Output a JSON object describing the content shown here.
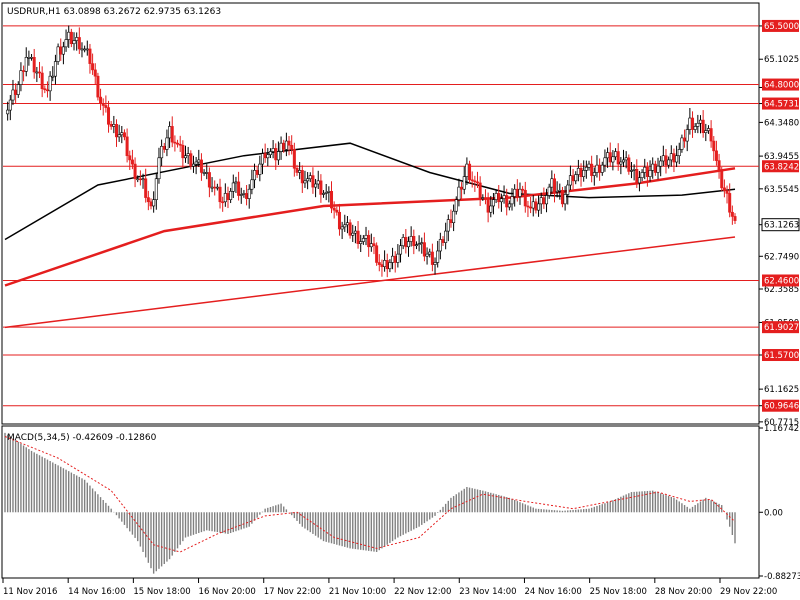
{
  "header": {
    "symbol": "USDRUR,H1",
    "open": "63.0898",
    "high": "63.2672",
    "low": "62.9735",
    "close": "63.1263"
  },
  "macd_header": {
    "label": "MACD(5,34,5)",
    "main": "-0.42609",
    "signal": "-0.12860"
  },
  "colors": {
    "line_red": "#e41e1e",
    "line_black": "#000000",
    "bull": "#ffffff",
    "bear": "#e41e1e",
    "hist": "#808080",
    "signal": "#e41e1e"
  },
  "chart_data": {
    "type": "candlestick",
    "price_axis": {
      "ticks": [
        "65.5000",
        "65.1025",
        "64.7650",
        "64.5731",
        "64.3480",
        "63.9455",
        "63.5545",
        "63.1263",
        "62.7490",
        "62.3585",
        "61.9590",
        "61.5700",
        "61.1625",
        "60.9646",
        "60.7715"
      ],
      "range": [
        60.77,
        65.75
      ]
    },
    "horizontal_levels": [
      65.5,
      64.8,
      64.5731,
      63.8242,
      62.46,
      61.9027,
      61.57,
      60.9646
    ],
    "horizontal_level_labels": [
      "65.5000",
      "64.8000",
      "64.5731",
      "63.8242",
      "62.4600",
      "61.9027",
      "61.5700",
      "60.9646"
    ],
    "current_price_label": "63.1263",
    "time_labels": [
      "11 Nov 2016",
      "14 Nov 16:00",
      "15 Nov 18:00",
      "16 Nov 20:00",
      "17 Nov 22:00",
      "21 Nov 10:00",
      "22 Nov 12:00",
      "23 Nov 14:00",
      "24 Nov 16:00",
      "25 Nov 18:00",
      "28 Nov 20:00",
      "29 Nov 22:00"
    ],
    "close_path": [
      [
        0,
        64.45
      ],
      [
        5,
        64.8
      ],
      [
        8,
        65.15
      ],
      [
        12,
        64.95
      ],
      [
        16,
        64.7
      ],
      [
        20,
        65.2
      ],
      [
        24,
        65.35
      ],
      [
        28,
        65.3
      ],
      [
        32,
        65.1
      ],
      [
        36,
        64.6
      ],
      [
        40,
        64.3
      ],
      [
        44,
        64.2
      ],
      [
        48,
        63.8
      ],
      [
        52,
        63.6
      ],
      [
        55,
        63.3
      ],
      [
        58,
        63.9
      ],
      [
        62,
        64.25
      ],
      [
        66,
        64.0
      ],
      [
        70,
        63.9
      ],
      [
        74,
        63.8
      ],
      [
        78,
        63.6
      ],
      [
        82,
        63.4
      ],
      [
        86,
        63.6
      ],
      [
        90,
        63.45
      ],
      [
        94,
        63.7
      ],
      [
        98,
        64.0
      ],
      [
        102,
        63.95
      ],
      [
        106,
        64.15
      ],
      [
        110,
        63.75
      ],
      [
        114,
        63.65
      ],
      [
        118,
        63.6
      ],
      [
        122,
        63.45
      ],
      [
        126,
        63.15
      ],
      [
        130,
        63.05
      ],
      [
        134,
        62.95
      ],
      [
        138,
        62.9
      ],
      [
        142,
        62.6
      ],
      [
        146,
        62.7
      ],
      [
        150,
        62.9
      ],
      [
        154,
        62.95
      ],
      [
        158,
        62.8
      ],
      [
        162,
        62.7
      ],
      [
        166,
        63.05
      ],
      [
        170,
        63.4
      ],
      [
        174,
        63.8
      ],
      [
        178,
        63.55
      ],
      [
        182,
        63.35
      ],
      [
        186,
        63.45
      ],
      [
        190,
        63.4
      ],
      [
        194,
        63.55
      ],
      [
        198,
        63.3
      ],
      [
        202,
        63.4
      ],
      [
        206,
        63.6
      ],
      [
        210,
        63.45
      ],
      [
        214,
        63.7
      ],
      [
        218,
        63.8
      ],
      [
        222,
        63.75
      ],
      [
        226,
        63.9
      ],
      [
        230,
        63.95
      ],
      [
        234,
        63.85
      ],
      [
        238,
        63.7
      ],
      [
        242,
        63.75
      ],
      [
        246,
        63.85
      ],
      [
        250,
        63.9
      ],
      [
        254,
        64.0
      ],
      [
        258,
        64.35
      ],
      [
        262,
        64.3
      ],
      [
        266,
        64.2
      ],
      [
        269,
        63.7
      ],
      [
        272,
        63.45
      ],
      [
        275,
        63.15
      ]
    ],
    "sma_red_path": [
      [
        0,
        62.4
      ],
      [
        60,
        63.05
      ],
      [
        120,
        63.35
      ],
      [
        190,
        63.45
      ],
      [
        238,
        63.62
      ],
      [
        275,
        63.8
      ]
    ],
    "sma_black_path": [
      [
        0,
        62.95
      ],
      [
        35,
        63.6
      ],
      [
        90,
        63.95
      ],
      [
        130,
        64.1
      ],
      [
        160,
        63.75
      ],
      [
        190,
        63.5
      ],
      [
        220,
        63.45
      ],
      [
        255,
        63.48
      ],
      [
        275,
        63.55
      ]
    ],
    "trendline": {
      "x1": 0,
      "y1": 61.9,
      "x2": 275,
      "y2": 62.98
    },
    "macd_axis": {
      "ticks": [
        "1.16742",
        "0.00",
        "-0.88273"
      ],
      "range": [
        -0.88273,
        1.16742
      ]
    },
    "macd_histogram_path": [
      [
        0,
        1.1
      ],
      [
        10,
        0.85
      ],
      [
        20,
        0.65
      ],
      [
        30,
        0.45
      ],
      [
        40,
        0.05
      ],
      [
        50,
        -0.4
      ],
      [
        56,
        -0.85
      ],
      [
        62,
        -0.65
      ],
      [
        68,
        -0.35
      ],
      [
        76,
        -0.25
      ],
      [
        84,
        -0.3
      ],
      [
        92,
        -0.2
      ],
      [
        98,
        0.05
      ],
      [
        104,
        0.12
      ],
      [
        112,
        -0.2
      ],
      [
        120,
        -0.4
      ],
      [
        130,
        -0.5
      ],
      [
        140,
        -0.55
      ],
      [
        148,
        -0.35
      ],
      [
        156,
        -0.2
      ],
      [
        162,
        -0.05
      ],
      [
        168,
        0.2
      ],
      [
        174,
        0.35
      ],
      [
        180,
        0.3
      ],
      [
        190,
        0.2
      ],
      [
        200,
        0.05
      ],
      [
        210,
        0.02
      ],
      [
        220,
        0.05
      ],
      [
        228,
        0.15
      ],
      [
        236,
        0.28
      ],
      [
        244,
        0.3
      ],
      [
        252,
        0.2
      ],
      [
        258,
        0.05
      ],
      [
        264,
        0.2
      ],
      [
        270,
        0.1
      ],
      [
        273,
        -0.2
      ],
      [
        275,
        -0.43
      ]
    ],
    "macd_signal_path": [
      [
        0,
        1.05
      ],
      [
        20,
        0.75
      ],
      [
        40,
        0.3
      ],
      [
        56,
        -0.45
      ],
      [
        66,
        -0.55
      ],
      [
        80,
        -0.3
      ],
      [
        98,
        -0.05
      ],
      [
        110,
        0.0
      ],
      [
        124,
        -0.35
      ],
      [
        140,
        -0.5
      ],
      [
        156,
        -0.35
      ],
      [
        168,
        0.05
      ],
      [
        180,
        0.25
      ],
      [
        196,
        0.15
      ],
      [
        214,
        0.05
      ],
      [
        232,
        0.18
      ],
      [
        246,
        0.28
      ],
      [
        258,
        0.15
      ],
      [
        266,
        0.18
      ],
      [
        275,
        -0.13
      ]
    ]
  }
}
